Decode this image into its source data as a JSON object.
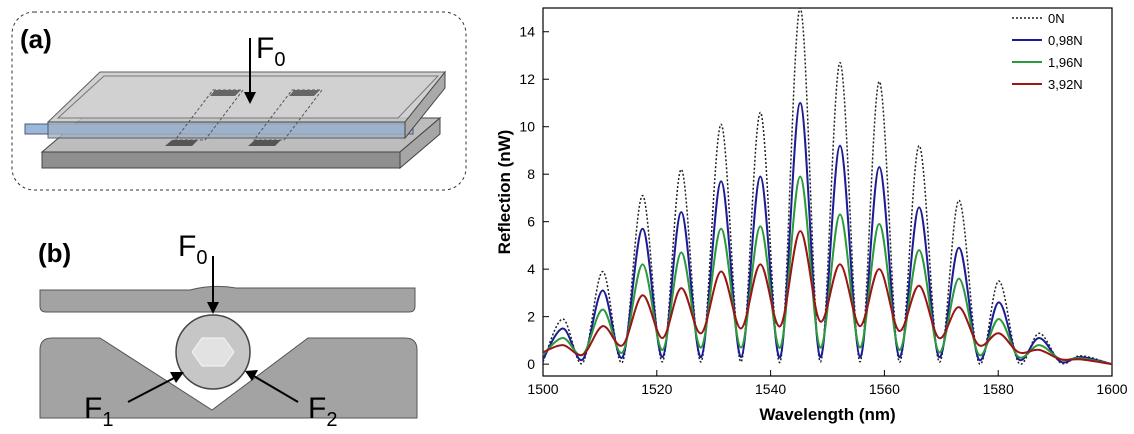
{
  "panel_a": {
    "label": "(a)",
    "force": {
      "symbol": "F",
      "subscript": "0"
    }
  },
  "panel_b": {
    "label": "(b)",
    "forces": [
      {
        "symbol": "F",
        "subscript": "0"
      },
      {
        "symbol": "F",
        "subscript": "1"
      },
      {
        "symbol": "F",
        "subscript": "2"
      }
    ]
  },
  "chart_data": {
    "type": "line",
    "x_label": "Wavelength (nm)",
    "y_label": "Reflection (nW)",
    "x": [
      1500,
      1503.5,
      1507,
      1510.5,
      1514,
      1517.5,
      1521,
      1524.3,
      1527.8,
      1531.3,
      1534.8,
      1538.2,
      1541.7,
      1545.2,
      1548.7,
      1552.2,
      1555.7,
      1559.1,
      1562.6,
      1566.1,
      1569.6,
      1573.1,
      1576.6,
      1580.1,
      1583.6,
      1587.2,
      1591,
      1594.5,
      1600
    ],
    "series": [
      {
        "name": "0N",
        "color": "#222222",
        "dashed": true,
        "values": [
          0.1,
          1.9,
          0.05,
          3.9,
          0.1,
          7.1,
          0.1,
          8.2,
          0.1,
          10.1,
          0.1,
          10.6,
          0.1,
          15.0,
          0.1,
          12.7,
          0.1,
          11.9,
          0.1,
          9.2,
          0.1,
          6.9,
          0.05,
          3.5,
          0.05,
          1.3,
          0.05,
          0.35,
          0
        ]
      },
      {
        "name": "0,98N",
        "color": "#1c1c96",
        "dashed": false,
        "values": [
          0.2,
          1.5,
          0.2,
          3.1,
          0.3,
          5.7,
          0.3,
          6.4,
          0.3,
          7.7,
          0.3,
          7.9,
          0.3,
          11.0,
          0.3,
          9.2,
          0.3,
          8.3,
          0.3,
          6.6,
          0.3,
          4.9,
          0.2,
          2.6,
          0.2,
          1.1,
          0.1,
          0.3,
          0
        ]
      },
      {
        "name": "1,96N",
        "color": "#2a9a3a",
        "dashed": false,
        "values": [
          0.4,
          1.1,
          0.4,
          2.3,
          0.5,
          4.2,
          0.6,
          4.7,
          0.7,
          5.7,
          0.7,
          5.8,
          0.7,
          7.9,
          0.7,
          6.3,
          0.7,
          5.9,
          0.6,
          4.8,
          0.5,
          3.6,
          0.4,
          1.9,
          0.3,
          0.8,
          0.2,
          0.25,
          0
        ]
      },
      {
        "name": "3,92N",
        "color": "#9c1414",
        "dashed": false,
        "values": [
          0.5,
          0.8,
          0.4,
          1.6,
          0.8,
          2.9,
          1.1,
          3.2,
          1.3,
          3.9,
          1.5,
          4.2,
          1.6,
          5.6,
          1.8,
          4.2,
          1.6,
          4.0,
          1.4,
          3.3,
          1.1,
          2.4,
          0.8,
          1.3,
          0.5,
          0.6,
          0.2,
          0.2,
          0
        ]
      }
    ],
    "xlim": [
      1500,
      1600
    ],
    "xticks": [
      1500,
      1520,
      1540,
      1560,
      1580,
      1600
    ],
    "ylim": [
      -0.5,
      15
    ],
    "yticks": [
      0,
      2,
      4,
      6,
      8,
      10,
      12,
      14
    ],
    "legend": "upper right"
  }
}
